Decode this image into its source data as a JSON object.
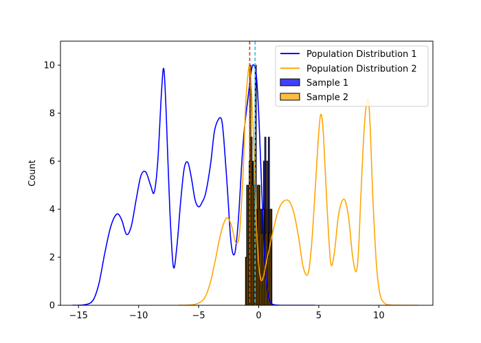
{
  "chart_data": {
    "type": "line",
    "title": "",
    "xlabel": "",
    "ylabel": "Count",
    "xlim": [
      -16.5,
      14.5
    ],
    "ylim": [
      0,
      11
    ],
    "xticks": [
      -15,
      -10,
      -5,
      0,
      5,
      10
    ],
    "yticks": [
      0,
      2,
      4,
      6,
      8,
      10
    ],
    "grid": false,
    "legend_position": "top-right",
    "series": [
      {
        "name": "Population Distribution 1",
        "kind": "line",
        "color": "#0000ff",
        "x": [
          -15.5,
          -14.5,
          -13.8,
          -13.3,
          -12.8,
          -12.3,
          -11.8,
          -11.4,
          -11.0,
          -10.6,
          -10.2,
          -9.8,
          -9.4,
          -9.0,
          -8.7,
          -8.4,
          -8.1,
          -7.9,
          -7.7,
          -7.4,
          -7.1,
          -6.8,
          -6.5,
          -6.2,
          -5.9,
          -5.6,
          -5.3,
          -5.0,
          -4.7,
          -4.4,
          -4.0,
          -3.7,
          -3.4,
          -3.1,
          -2.9,
          -2.6,
          -2.3,
          -2.0,
          -1.7,
          -1.4,
          -1.2,
          -0.9,
          -0.6,
          -0.4,
          -0.2,
          0.0,
          0.2,
          0.4,
          0.6,
          0.8,
          1.0,
          1.3,
          1.8,
          2.5,
          4.7
        ],
        "y": [
          0,
          0.02,
          0.2,
          0.9,
          2.2,
          3.3,
          3.8,
          3.55,
          2.95,
          3.3,
          4.4,
          5.4,
          5.55,
          5.0,
          4.7,
          6.0,
          8.8,
          9.85,
          8.0,
          4.0,
          1.6,
          2.5,
          4.3,
          5.7,
          5.95,
          5.3,
          4.4,
          4.1,
          4.3,
          4.7,
          5.9,
          7.2,
          7.7,
          7.75,
          6.9,
          4.8,
          2.6,
          2.15,
          3.5,
          6.0,
          7.3,
          8.6,
          9.8,
          10.0,
          9.6,
          8.0,
          5.5,
          3.0,
          1.3,
          0.4,
          0.1,
          0.02,
          0,
          0,
          0
        ]
      },
      {
        "name": "Population Distribution 2",
        "kind": "line",
        "color": "#ffa500",
        "x": [
          -6.7,
          -5.5,
          -4.8,
          -4.4,
          -4.0,
          -3.6,
          -3.2,
          -2.8,
          -2.5,
          -2.2,
          -1.9,
          -1.6,
          -1.3,
          -1.1,
          -0.9,
          -0.75,
          -0.6,
          -0.4,
          -0.2,
          0.0,
          0.2,
          0.4,
          0.6,
          0.9,
          1.2,
          1.6,
          2.0,
          2.5,
          2.9,
          3.3,
          3.7,
          4.1,
          4.4,
          4.7,
          5.0,
          5.2,
          5.4,
          5.7,
          6.0,
          6.3,
          6.6,
          6.9,
          7.2,
          7.5,
          7.8,
          8.1,
          8.3,
          8.5,
          8.8,
          9.1,
          9.3,
          9.5,
          9.8,
          10.1,
          10.5,
          11.0,
          12.0,
          13.3
        ],
        "y": [
          0,
          0.02,
          0.15,
          0.4,
          1.0,
          1.9,
          2.9,
          3.55,
          3.6,
          3.2,
          2.6,
          3.0,
          5.5,
          8.2,
          9.6,
          9.95,
          9.0,
          6.5,
          3.5,
          1.7,
          1.05,
          1.2,
          1.7,
          2.4,
          3.1,
          3.9,
          4.3,
          4.35,
          3.9,
          2.9,
          1.6,
          1.3,
          2.5,
          4.8,
          7.2,
          7.95,
          7.0,
          4.0,
          1.75,
          2.2,
          3.6,
          4.3,
          4.35,
          3.6,
          2.1,
          1.4,
          2.2,
          4.5,
          7.5,
          8.6,
          7.2,
          4.5,
          1.7,
          0.45,
          0.08,
          0.01,
          0,
          0
        ]
      },
      {
        "name": "Sample 1",
        "kind": "bars",
        "color": "#0000ff",
        "fill_opacity": 0.75,
        "x": [
          -1.05,
          -0.95,
          -0.85,
          -0.75,
          -0.65,
          -0.55,
          -0.45,
          -0.35,
          -0.25,
          -0.15,
          -0.05,
          0.05,
          0.15,
          0.25,
          0.35,
          0.45,
          0.55,
          0.65,
          0.75,
          0.85,
          0.95,
          1.05
        ],
        "y": [
          2,
          5,
          4,
          6,
          7,
          6,
          4,
          5,
          10,
          3,
          5,
          5,
          3,
          4,
          2,
          6,
          7,
          4,
          1,
          7,
          4,
          4
        ]
      },
      {
        "name": "Sample 2",
        "kind": "bars",
        "color": "#ffa500",
        "fill_opacity": 0.75,
        "x": [
          -1.0,
          -0.9,
          -0.8,
          -0.7,
          -0.6,
          -0.5,
          -0.4,
          -0.3,
          -0.2,
          -0.1,
          0.0,
          0.1,
          0.2,
          0.3,
          0.4,
          0.5,
          0.6,
          0.7,
          0.8,
          0.9,
          1.0
        ],
        "y": [
          2,
          5,
          5,
          10,
          7,
          5,
          6,
          5,
          4,
          3,
          5,
          4,
          3,
          3,
          4,
          2,
          3,
          6,
          2,
          3,
          4
        ]
      }
    ],
    "vertical_lines": [
      {
        "x": -0.75,
        "color": "#cc4400",
        "style": "dashed"
      },
      {
        "x": -0.3,
        "color": "#33bbee",
        "style": "dashed"
      }
    ]
  }
}
